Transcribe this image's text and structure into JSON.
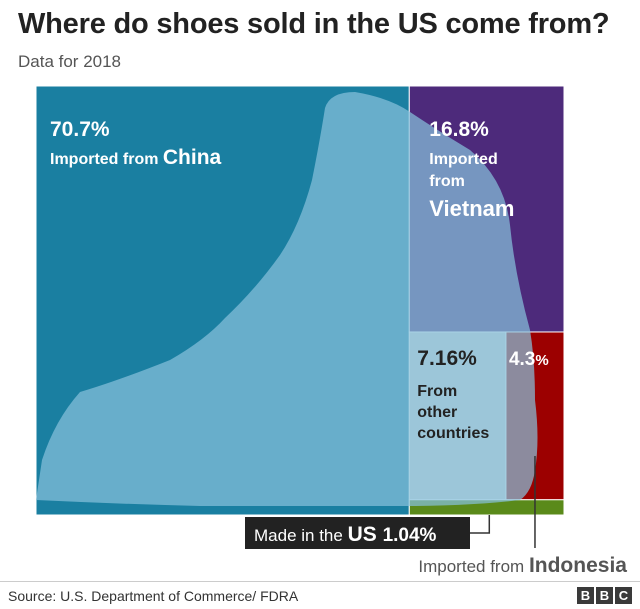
{
  "title": "Where do shoes sold in the US come from?",
  "subtitle": "Data for 2018",
  "source": "Source: U.S. Department of Commerce/ FDRA",
  "brand_letters": [
    "B",
    "B",
    "C"
  ],
  "colors": {
    "china": "#1a7fa1",
    "vietnam": "#4d2a7b",
    "other": "#d4d4d4",
    "indonesia": "#9c0000",
    "us": "#5a8a1a",
    "boot": "#87c1db",
    "callout_bg": "#222222"
  },
  "chart_data": {
    "type": "treemap",
    "title": "Where do shoes sold in the US come from?",
    "subtitle": "Data for 2018",
    "unit": "%",
    "items": [
      {
        "key": "china",
        "value": 70.7,
        "pct_label": "70.7%",
        "prefix": "Imported from",
        "name": "China"
      },
      {
        "key": "vietnam",
        "value": 16.8,
        "pct_label": "16.8%",
        "prefix": "Imported from",
        "name": "Vietnam"
      },
      {
        "key": "other",
        "value": 7.16,
        "pct_label": "7.16%",
        "label_lines": [
          "From",
          "other",
          "countries"
        ]
      },
      {
        "key": "indonesia",
        "value": 4.3,
        "pct_label": "4.3",
        "pct_suffix": "%",
        "prefix": "Imported from",
        "name": "Indonesia"
      },
      {
        "key": "us",
        "value": 1.04,
        "prefix": "Made in the",
        "name": "US",
        "pct_label": "1.04%"
      }
    ]
  }
}
